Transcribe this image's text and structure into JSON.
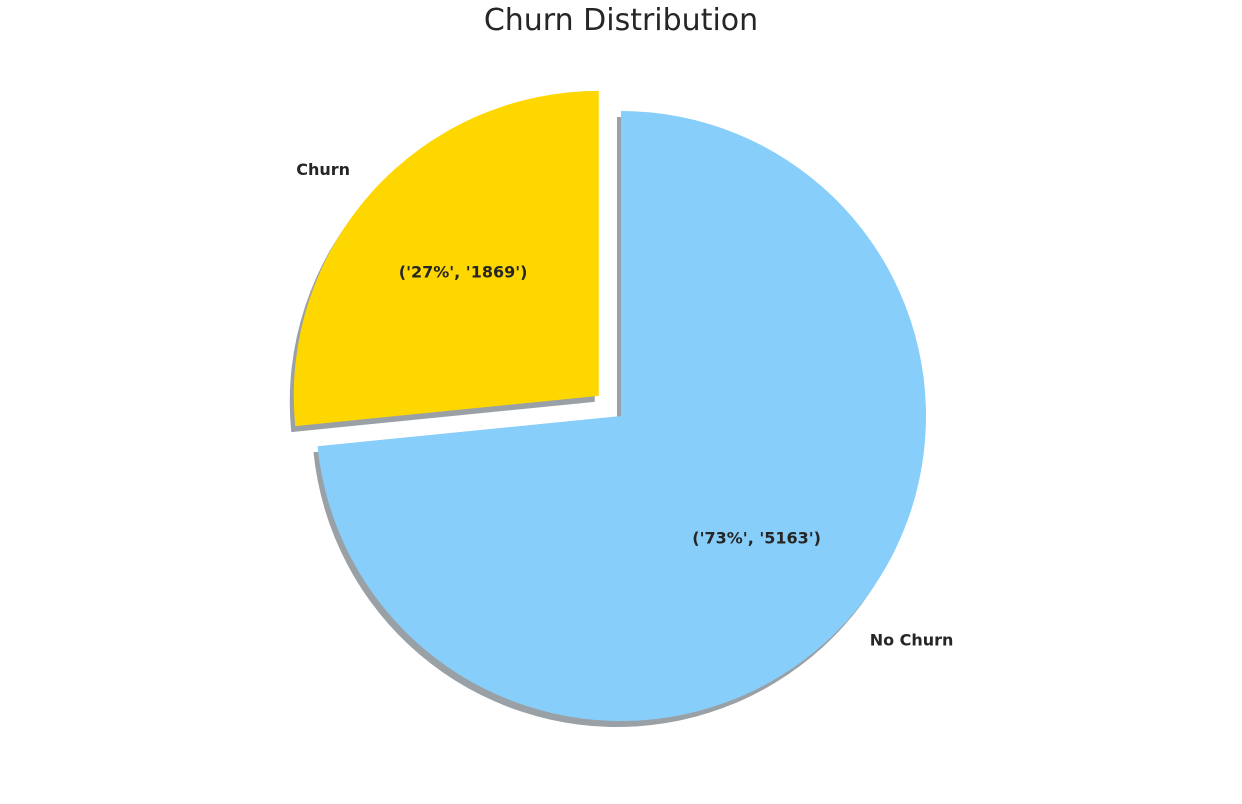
{
  "chart_data": {
    "type": "pie",
    "title": "Churn Distribution",
    "slices": [
      {
        "label": "Churn",
        "value": 1869,
        "percent_label": "('27%', '1869')",
        "color": "#FFD700",
        "exploded": true
      },
      {
        "label": "No Churn",
        "value": 5163,
        "percent_label": "('73%', '5163')",
        "color": "#87CEFA",
        "exploded": false
      }
    ],
    "start_angle_deg": 90,
    "direction": "counterclockwise",
    "shadow": true,
    "shadow_color": "#9AA1A6",
    "legend": "none"
  }
}
